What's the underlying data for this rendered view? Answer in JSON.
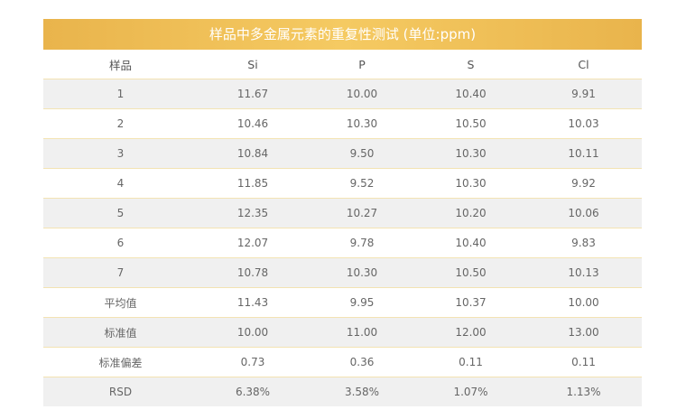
{
  "table": {
    "title": "样品中多金属元素的重复性测试 (单位:ppm)",
    "headers": [
      "样品",
      "Si",
      "P",
      "S",
      "Cl"
    ],
    "rows": [
      [
        "1",
        "11.67",
        "10.00",
        "10.40",
        "9.91"
      ],
      [
        "2",
        "10.46",
        "10.30",
        "10.50",
        "10.03"
      ],
      [
        "3",
        "10.84",
        "9.50",
        "10.30",
        "10.11"
      ],
      [
        "4",
        "11.85",
        "9.52",
        "10.30",
        "9.92"
      ],
      [
        "5",
        "12.35",
        "10.27",
        "10.20",
        "10.06"
      ],
      [
        "6",
        "12.07",
        "9.78",
        "10.40",
        "9.83"
      ],
      [
        "7",
        "10.78",
        "10.30",
        "10.50",
        "10.13"
      ],
      [
        "平均值",
        "11.43",
        "9.95",
        "10.37",
        "10.00"
      ],
      [
        "标准值",
        "10.00",
        "11.00",
        "12.00",
        "13.00"
      ],
      [
        "标准偏差",
        "0.73",
        "0.36",
        "0.11",
        "0.11"
      ],
      [
        "RSD",
        "6.38%",
        "3.58%",
        "1.07%",
        "1.13%"
      ]
    ]
  },
  "colors": {
    "title_bar": "#f2c358",
    "row_stripe": "#f0f0f0",
    "row_divider": "#f3e3b3",
    "text": "#666666"
  }
}
